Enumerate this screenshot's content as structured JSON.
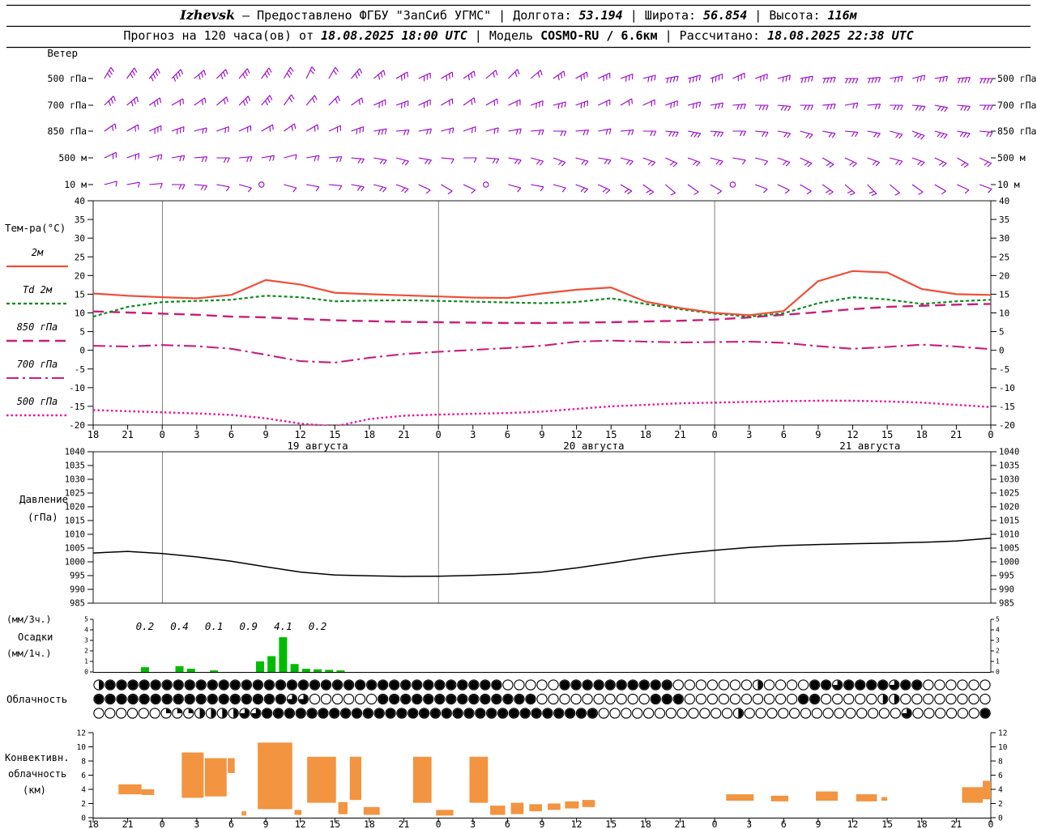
{
  "header": {
    "line1": [
      {
        "text": "Izhevsk",
        "style": "city"
      },
      {
        "text": " – Предоставлено ФГБУ \"ЗапСиб УГМС\" ",
        "style": "plain"
      },
      {
        "text": "| Долгота: ",
        "style": "plain"
      },
      {
        "text": "53.194",
        "style": "bi"
      },
      {
        "text": " | Широта: ",
        "style": "plain"
      },
      {
        "text": "56.854",
        "style": "bi"
      },
      {
        "text": " | Высота: ",
        "style": "plain"
      },
      {
        "text": "116м",
        "style": "bi"
      }
    ],
    "line2": [
      {
        "text": "Прогноз на 120 часа(ов) от ",
        "style": "plain"
      },
      {
        "text": "18.08.2025 18:00 UTC",
        "style": "bi"
      },
      {
        "text": " | Модель ",
        "style": "plain"
      },
      {
        "text": "COSMO-RU / 6.6км",
        "style": "b"
      },
      {
        "text": " | Рассчитано: ",
        "style": "plain"
      },
      {
        "text": "18.08.2025 22:38 UTC",
        "style": "bi"
      }
    ]
  },
  "colors": {
    "barb": "#9900cc",
    "t2m": "#ee4f38",
    "td2m": "#0c8a1e",
    "t850": "#c81e78",
    "t700": "#c81e78",
    "t500": "#e8189c",
    "pressure": "#000000",
    "precip": "#00bb00",
    "convective": "#f29440",
    "axis": "#000000"
  },
  "chart_data": {
    "type": "meteogram",
    "x": {
      "hours_span": 78,
      "step_hours": 3,
      "hour_labels": [
        "18",
        "21",
        "0",
        "3",
        "6",
        "9",
        "12",
        "15",
        "18",
        "21",
        "0",
        "3",
        "6",
        "9",
        "12",
        "15",
        "18",
        "21",
        "0",
        "3",
        "6",
        "9",
        "12",
        "15",
        "18",
        "21",
        "0"
      ],
      "date_labels": [
        {
          "text": "19 августа",
          "hour": 19.5
        },
        {
          "text": "20 августа",
          "hour": 43.5
        },
        {
          "text": "21 августа",
          "hour": 67.5
        }
      ],
      "midnight_hours": [
        6,
        30,
        54
      ]
    },
    "panels": {
      "wind": {
        "label": "Ветер",
        "levels": [
          {
            "label": "500 гПа",
            "angles": [
              30,
              35,
              40,
              45,
              50,
              45,
              40,
              35,
              30,
              25,
              30,
              40,
              50,
              60,
              65,
              60,
              55,
              50,
              45,
              50,
              55,
              60,
              65,
              70,
              75,
              80,
              75,
              70,
              65,
              70,
              75,
              80,
              85,
              90,
              85,
              80,
              75,
              80,
              85,
              90
            ],
            "ticks": [
              3,
              3,
              4,
              4,
              3,
              3,
              3,
              3,
              3,
              2,
              2,
              3,
              3,
              3,
              3,
              3,
              3,
              2,
              2,
              2,
              3,
              3,
              3,
              3,
              3,
              4,
              4,
              4,
              3,
              3,
              3,
              4,
              4,
              4,
              4,
              3,
              3,
              3,
              4,
              4
            ]
          },
          {
            "label": "700 гПа",
            "angles": [
              45,
              50,
              55,
              60,
              55,
              50,
              45,
              40,
              35,
              40,
              45,
              55,
              65,
              70,
              65,
              60,
              55,
              60,
              65,
              70,
              75,
              70,
              65,
              60,
              65,
              70,
              75,
              80,
              85,
              90,
              95,
              90,
              85,
              80,
              85,
              90,
              95,
              100,
              95,
              90
            ],
            "ticks": [
              3,
              3,
              3,
              2,
              2,
              2,
              3,
              3,
              2,
              2,
              2,
              2,
              3,
              3,
              3,
              2,
              2,
              2,
              2,
              3,
              3,
              3,
              2,
              2,
              2,
              3,
              3,
              3,
              3,
              3,
              3,
              3,
              3,
              2,
              2,
              3,
              3,
              3,
              3,
              3
            ]
          },
          {
            "label": "850 гПа",
            "angles": [
              55,
              60,
              65,
              70,
              75,
              70,
              65,
              60,
              55,
              60,
              65,
              70,
              80,
              85,
              80,
              75,
              70,
              75,
              80,
              85,
              90,
              85,
              80,
              85,
              90,
              95,
              100,
              95,
              90,
              95,
              100,
              105,
              100,
              95,
              100,
              105,
              110,
              105,
              100,
              95
            ],
            "ticks": [
              2,
              2,
              3,
              3,
              2,
              2,
              2,
              2,
              2,
              2,
              2,
              3,
              3,
              2,
              2,
              2,
              2,
              2,
              2,
              2,
              2,
              2,
              2,
              2,
              2,
              3,
              3,
              3,
              2,
              2,
              2,
              2,
              2,
              2,
              2,
              2,
              3,
              3,
              3,
              2
            ]
          },
          {
            "label": "500 м",
            "angles": [
              65,
              70,
              75,
              80,
              85,
              90,
              85,
              80,
              75,
              80,
              85,
              95,
              100,
              105,
              100,
              95,
              90,
              95,
              100,
              105,
              110,
              105,
              100,
              105,
              110,
              115,
              110,
              105,
              100,
              105,
              110,
              115,
              120,
              115,
              110,
              105,
              110,
              115,
              120,
              115
            ],
            "ticks": [
              2,
              2,
              2,
              2,
              2,
              2,
              2,
              2,
              1,
              2,
              2,
              2,
              2,
              2,
              2,
              1,
              1,
              2,
              2,
              2,
              2,
              2,
              2,
              2,
              2,
              2,
              2,
              2,
              1,
              1,
              2,
              2,
              2,
              2,
              2,
              2,
              2,
              2,
              2,
              2
            ]
          },
          {
            "label": "10 м",
            "angles": [
              75,
              80,
              85,
              90,
              95,
              100,
              105,
              110,
              105,
              100,
              95,
              100,
              105,
              110,
              115,
              120,
              115,
              110,
              105,
              100,
              105,
              110,
              115,
              120,
              125,
              130,
              125,
              120,
              115,
              110,
              115,
              120,
              125,
              130,
              135,
              130,
              125,
              120,
              115,
              110
            ],
            "ticks": [
              1,
              1,
              1,
              2,
              2,
              1,
              1,
              0,
              1,
              1,
              1,
              2,
              2,
              2,
              1,
              1,
              1,
              0,
              1,
              1,
              1,
              2,
              2,
              2,
              2,
              1,
              1,
              1,
              0,
              1,
              1,
              1,
              2,
              2,
              2,
              1,
              1,
              1,
              1,
              1
            ]
          }
        ]
      },
      "temperature": {
        "y_ticks": [
          40,
          35,
          30,
          25,
          20,
          15,
          10,
          5,
          0,
          -5,
          -10,
          -15,
          -20
        ],
        "legend": {
          "title": "Тем-ра(°C)",
          "entries": [
            {
              "label": "2м",
              "series": "t2m"
            },
            {
              "label": "Td 2м",
              "series": "td2m"
            },
            {
              "label": "850 гПа",
              "series": "t850"
            },
            {
              "label": "700 гПа",
              "series": "t700"
            },
            {
              "label": "500 гПа",
              "series": "t500"
            }
          ]
        },
        "series": {
          "t2m": [
            15.2,
            14.6,
            14.2,
            13.9,
            14.8,
            18.8,
            17.6,
            15.4,
            15.0,
            14.7,
            14.4,
            14.1,
            14.0,
            15.2,
            16.2,
            16.8,
            13.0,
            11.3,
            10.0,
            9.4,
            10.5,
            18.5,
            21.2,
            20.8,
            16.4,
            15.0,
            14.8
          ],
          "td2m": [
            9.0,
            11.6,
            12.9,
            13.2,
            13.5,
            14.6,
            14.2,
            13.1,
            13.3,
            13.4,
            13.2,
            13.0,
            12.8,
            12.6,
            12.9,
            13.9,
            12.4,
            11.0,
            9.8,
            9.0,
            9.9,
            12.6,
            14.2,
            13.6,
            12.4,
            13.1,
            13.5
          ],
          "t850": [
            10.4,
            10.1,
            9.8,
            9.5,
            9.0,
            8.8,
            8.4,
            8.0,
            7.8,
            7.6,
            7.5,
            7.4,
            7.3,
            7.3,
            7.4,
            7.5,
            7.7,
            7.9,
            8.2,
            8.8,
            9.5,
            10.2,
            11.0,
            11.6,
            11.9,
            12.2,
            12.4
          ],
          "t700": [
            1.2,
            1.0,
            1.4,
            1.1,
            0.4,
            -1.2,
            -2.9,
            -3.3,
            -2.0,
            -1.0,
            -0.4,
            0.1,
            0.6,
            1.2,
            2.3,
            2.6,
            2.3,
            2.1,
            2.2,
            2.3,
            2.0,
            1.1,
            0.4,
            0.9,
            1.5,
            1.0,
            0.3
          ],
          "t500": [
            -16.0,
            -16.3,
            -16.6,
            -16.9,
            -17.3,
            -18.2,
            -19.6,
            -20.4,
            -18.4,
            -17.5,
            -17.2,
            -17.0,
            -16.8,
            -16.4,
            -15.7,
            -15.0,
            -14.6,
            -14.2,
            -14.0,
            -13.8,
            -13.6,
            -13.5,
            -13.5,
            -13.7,
            -14.0,
            -14.6,
            -15.2
          ]
        }
      },
      "pressure": {
        "labels": [
          "Давление",
          "(гПа)"
        ],
        "y_ticks": [
          1040,
          1035,
          1030,
          1025,
          1020,
          1015,
          1010,
          1005,
          1000,
          995,
          990,
          985
        ],
        "values": [
          1003.2,
          1003.8,
          1003.0,
          1001.8,
          1000.2,
          998.2,
          996.3,
          995.2,
          994.9,
          994.7,
          994.8,
          995.1,
          995.5,
          996.3,
          997.8,
          999.6,
          1001.5,
          1003.0,
          1004.2,
          1005.2,
          1005.9,
          1006.3,
          1006.6,
          1006.8,
          1007.1,
          1007.6,
          1008.6
        ]
      },
      "precipitation": {
        "labels": [
          "(мм/3ч.)",
          "Осадки",
          "(мм/1ч.)"
        ],
        "y_ticks": [
          5,
          4,
          3,
          2,
          1,
          0
        ],
        "three_hour_totals": [
          {
            "value": "0.2",
            "hour": 4.5
          },
          {
            "value": "0.4",
            "hour": 7.5
          },
          {
            "value": "0.1",
            "hour": 10.5
          },
          {
            "value": "0.9",
            "hour": 13.5
          },
          {
            "value": "4.1",
            "hour": 16.5
          },
          {
            "value": "0.2",
            "hour": 19.5
          }
        ],
        "hourly_bars": [
          {
            "hour": 4,
            "value": 0.45
          },
          {
            "hour": 7,
            "value": 0.55
          },
          {
            "hour": 8,
            "value": 0.3
          },
          {
            "hour": 10,
            "value": 0.15
          },
          {
            "hour": 14,
            "value": 1.0
          },
          {
            "hour": 15,
            "value": 1.5
          },
          {
            "hour": 16,
            "value": 3.3
          },
          {
            "hour": 17,
            "value": 0.75
          },
          {
            "hour": 18,
            "value": 0.3
          },
          {
            "hour": 19,
            "value": 0.25
          },
          {
            "hour": 20,
            "value": 0.2
          },
          {
            "hour": 21,
            "value": 0.15
          }
        ]
      },
      "cloudiness": {
        "label": "Облачность",
        "rows": [
          "hfffffffffffffffffffffffffffffffffffoooooffffffffffooooooohoooofftfffftffoooooo",
          "fffffffffffffffffttooooooffffffffffffffoooooooooofffooooooooooffooooohhoooooooo",
          "ooooooqqqhhhhttffffffffffffffffffffffffffffffoooooooooooohooooooooooooootoooooof"
        ]
      },
      "convective": {
        "labels": [
          "Конвективн.",
          "облачность",
          "(км)"
        ],
        "y_ticks": [
          12,
          10,
          8,
          6,
          4,
          2,
          0
        ],
        "segments": [
          [
            2.2,
            4.2,
            3.3,
            4.7
          ],
          [
            4.2,
            5.3,
            3.2,
            4.0
          ],
          [
            7.7,
            9.6,
            2.8,
            9.2
          ],
          [
            9.7,
            11.6,
            3.0,
            8.4
          ],
          [
            11.7,
            12.3,
            6.3,
            8.4
          ],
          [
            12.9,
            13.3,
            0.3,
            0.9
          ],
          [
            14.3,
            17.3,
            1.2,
            10.6
          ],
          [
            17.5,
            18.1,
            0.4,
            1.1
          ],
          [
            18.6,
            21.1,
            2.1,
            8.6
          ],
          [
            21.3,
            22.1,
            0.5,
            2.2
          ],
          [
            22.3,
            23.3,
            2.5,
            8.6
          ],
          [
            23.5,
            24.9,
            0.4,
            1.5
          ],
          [
            27.8,
            29.4,
            2.1,
            8.6
          ],
          [
            29.8,
            31.3,
            0.3,
            1.1
          ],
          [
            32.7,
            34.3,
            2.1,
            8.6
          ],
          [
            34.5,
            35.8,
            0.4,
            1.7
          ],
          [
            36.3,
            37.4,
            0.5,
            2.1
          ],
          [
            37.9,
            39.0,
            0.9,
            1.9
          ],
          [
            39.5,
            40.6,
            1.1,
            2.0
          ],
          [
            41.0,
            42.2,
            1.3,
            2.3
          ],
          [
            42.5,
            43.6,
            1.5,
            2.5
          ],
          [
            55.0,
            57.4,
            2.4,
            3.3
          ],
          [
            58.9,
            60.4,
            2.3,
            3.1
          ],
          [
            62.8,
            64.7,
            2.4,
            3.7
          ],
          [
            66.3,
            68.1,
            2.3,
            3.3
          ],
          [
            68.5,
            69.0,
            2.4,
            2.9
          ],
          [
            75.5,
            77.3,
            2.1,
            4.3
          ],
          [
            77.3,
            78.0,
            2.6,
            5.2
          ]
        ]
      }
    }
  }
}
